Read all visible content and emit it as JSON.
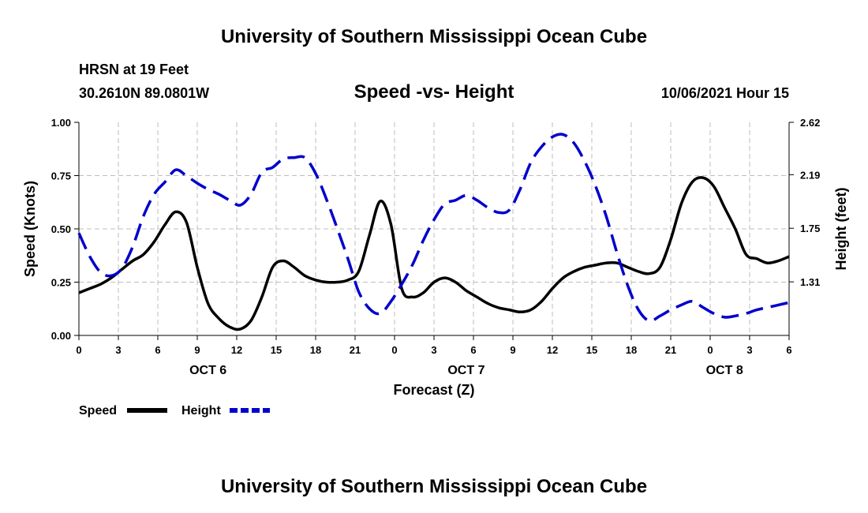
{
  "header": {
    "title_top": "University of Southern Mississippi Ocean Cube",
    "station": "HRSN at 19 Feet",
    "coords": "30.2610N  89.0801W",
    "datetime": "10/06/2021 Hour 15",
    "title_bottom": "University of Southern Mississippi Ocean Cube"
  },
  "chart_data": {
    "type": "line",
    "title": "Speed -vs- Height",
    "xlabel": "Forecast (Z)",
    "ylabel": "Speed (Knots)",
    "ylabel_right": "Height (feet)",
    "x_range_hours": [
      0,
      66
    ],
    "x_tick_labels": [
      "0",
      "3",
      "6",
      "9",
      "12",
      "15",
      "18",
      "21",
      "0",
      "3",
      "6",
      "9",
      "12",
      "15",
      "18",
      "21",
      "0",
      "3",
      "6"
    ],
    "day_labels": [
      {
        "label": "OCT 6",
        "hour": 12
      },
      {
        "label": "OCT 7",
        "hour": 36
      },
      {
        "label": "OCT 8",
        "hour": 60
      }
    ],
    "ylim": [
      0,
      1.0
    ],
    "y_ticks": [
      "0.00",
      "0.25",
      "0.50",
      "0.75",
      "1.00"
    ],
    "y2lim": [
      0.87,
      2.62
    ],
    "y2_ticks": [
      "1.31",
      "1.75",
      "2.19",
      "2.62"
    ],
    "grid": true,
    "series": [
      {
        "name": "Speed",
        "axis": "left",
        "color": "#000000",
        "style": "solid",
        "x": [
          0,
          1,
          2,
          3,
          4,
          5,
          6,
          7,
          8,
          9,
          10,
          11,
          12,
          13,
          14,
          15,
          16,
          17,
          18,
          19,
          20,
          21,
          22,
          23,
          24,
          25,
          26,
          27,
          28,
          29,
          30,
          31,
          32,
          33,
          34,
          35,
          36,
          37,
          38,
          39,
          40,
          41,
          42,
          43,
          44,
          45,
          46,
          47,
          48,
          49,
          50,
          51,
          52,
          53,
          54,
          55,
          56,
          57,
          58,
          59,
          60,
          61,
          62,
          63,
          64,
          65,
          66
        ],
        "values": [
          0.2,
          0.22,
          0.24,
          0.27,
          0.31,
          0.35,
          0.38,
          0.44,
          0.52,
          0.58,
          0.53,
          0.32,
          0.15,
          0.08,
          0.04,
          0.03,
          0.07,
          0.18,
          0.32,
          0.35,
          0.32,
          0.28,
          0.26,
          0.25,
          0.25,
          0.26,
          0.3,
          0.47,
          0.63,
          0.52,
          0.22,
          0.18,
          0.2,
          0.25,
          0.27,
          0.25,
          0.21,
          0.18,
          0.15,
          0.13,
          0.12,
          0.11,
          0.12,
          0.16,
          0.22,
          0.27,
          0.3,
          0.32,
          0.33,
          0.34,
          0.34,
          0.32,
          0.3,
          0.29,
          0.32,
          0.45,
          0.62,
          0.72,
          0.74,
          0.7,
          0.6,
          0.5,
          0.38,
          0.36,
          0.34,
          0.35,
          0.37
        ]
      },
      {
        "name": "Height",
        "axis": "right",
        "color": "#0000cc",
        "style": "dashed",
        "x": [
          0,
          1,
          2,
          3,
          4,
          5,
          6,
          7,
          8,
          9,
          10,
          11,
          12,
          13,
          14,
          15,
          16,
          17,
          18,
          19,
          20,
          21,
          22,
          23,
          24,
          25,
          26,
          27,
          28,
          29,
          30,
          31,
          32,
          33,
          34,
          35,
          36,
          37,
          38,
          39,
          40,
          41,
          42,
          43,
          44,
          45,
          46,
          47,
          48,
          49,
          50,
          51,
          52,
          53,
          54,
          55,
          56,
          57,
          58,
          59,
          60,
          61,
          62,
          63,
          64,
          65,
          66
        ],
        "values": [
          1.71,
          1.52,
          1.39,
          1.36,
          1.42,
          1.6,
          1.85,
          2.03,
          2.13,
          2.23,
          2.18,
          2.12,
          2.07,
          2.03,
          1.98,
          1.94,
          2.03,
          2.21,
          2.25,
          2.32,
          2.33,
          2.33,
          2.2,
          1.99,
          1.75,
          1.5,
          1.23,
          1.09,
          1.05,
          1.15,
          1.29,
          1.45,
          1.65,
          1.82,
          1.95,
          1.98,
          2.02,
          1.98,
          1.92,
          1.88,
          1.9,
          2.07,
          2.29,
          2.42,
          2.5,
          2.52,
          2.45,
          2.3,
          2.1,
          1.85,
          1.55,
          1.28,
          1.08,
          0.99,
          1.03,
          1.08,
          1.12,
          1.15,
          1.1,
          1.05,
          1.02,
          1.03,
          1.05,
          1.08,
          1.1,
          1.12,
          1.14
        ]
      }
    ],
    "legend": [
      "Speed",
      "Height"
    ],
    "legend_position": "bottom-left"
  }
}
